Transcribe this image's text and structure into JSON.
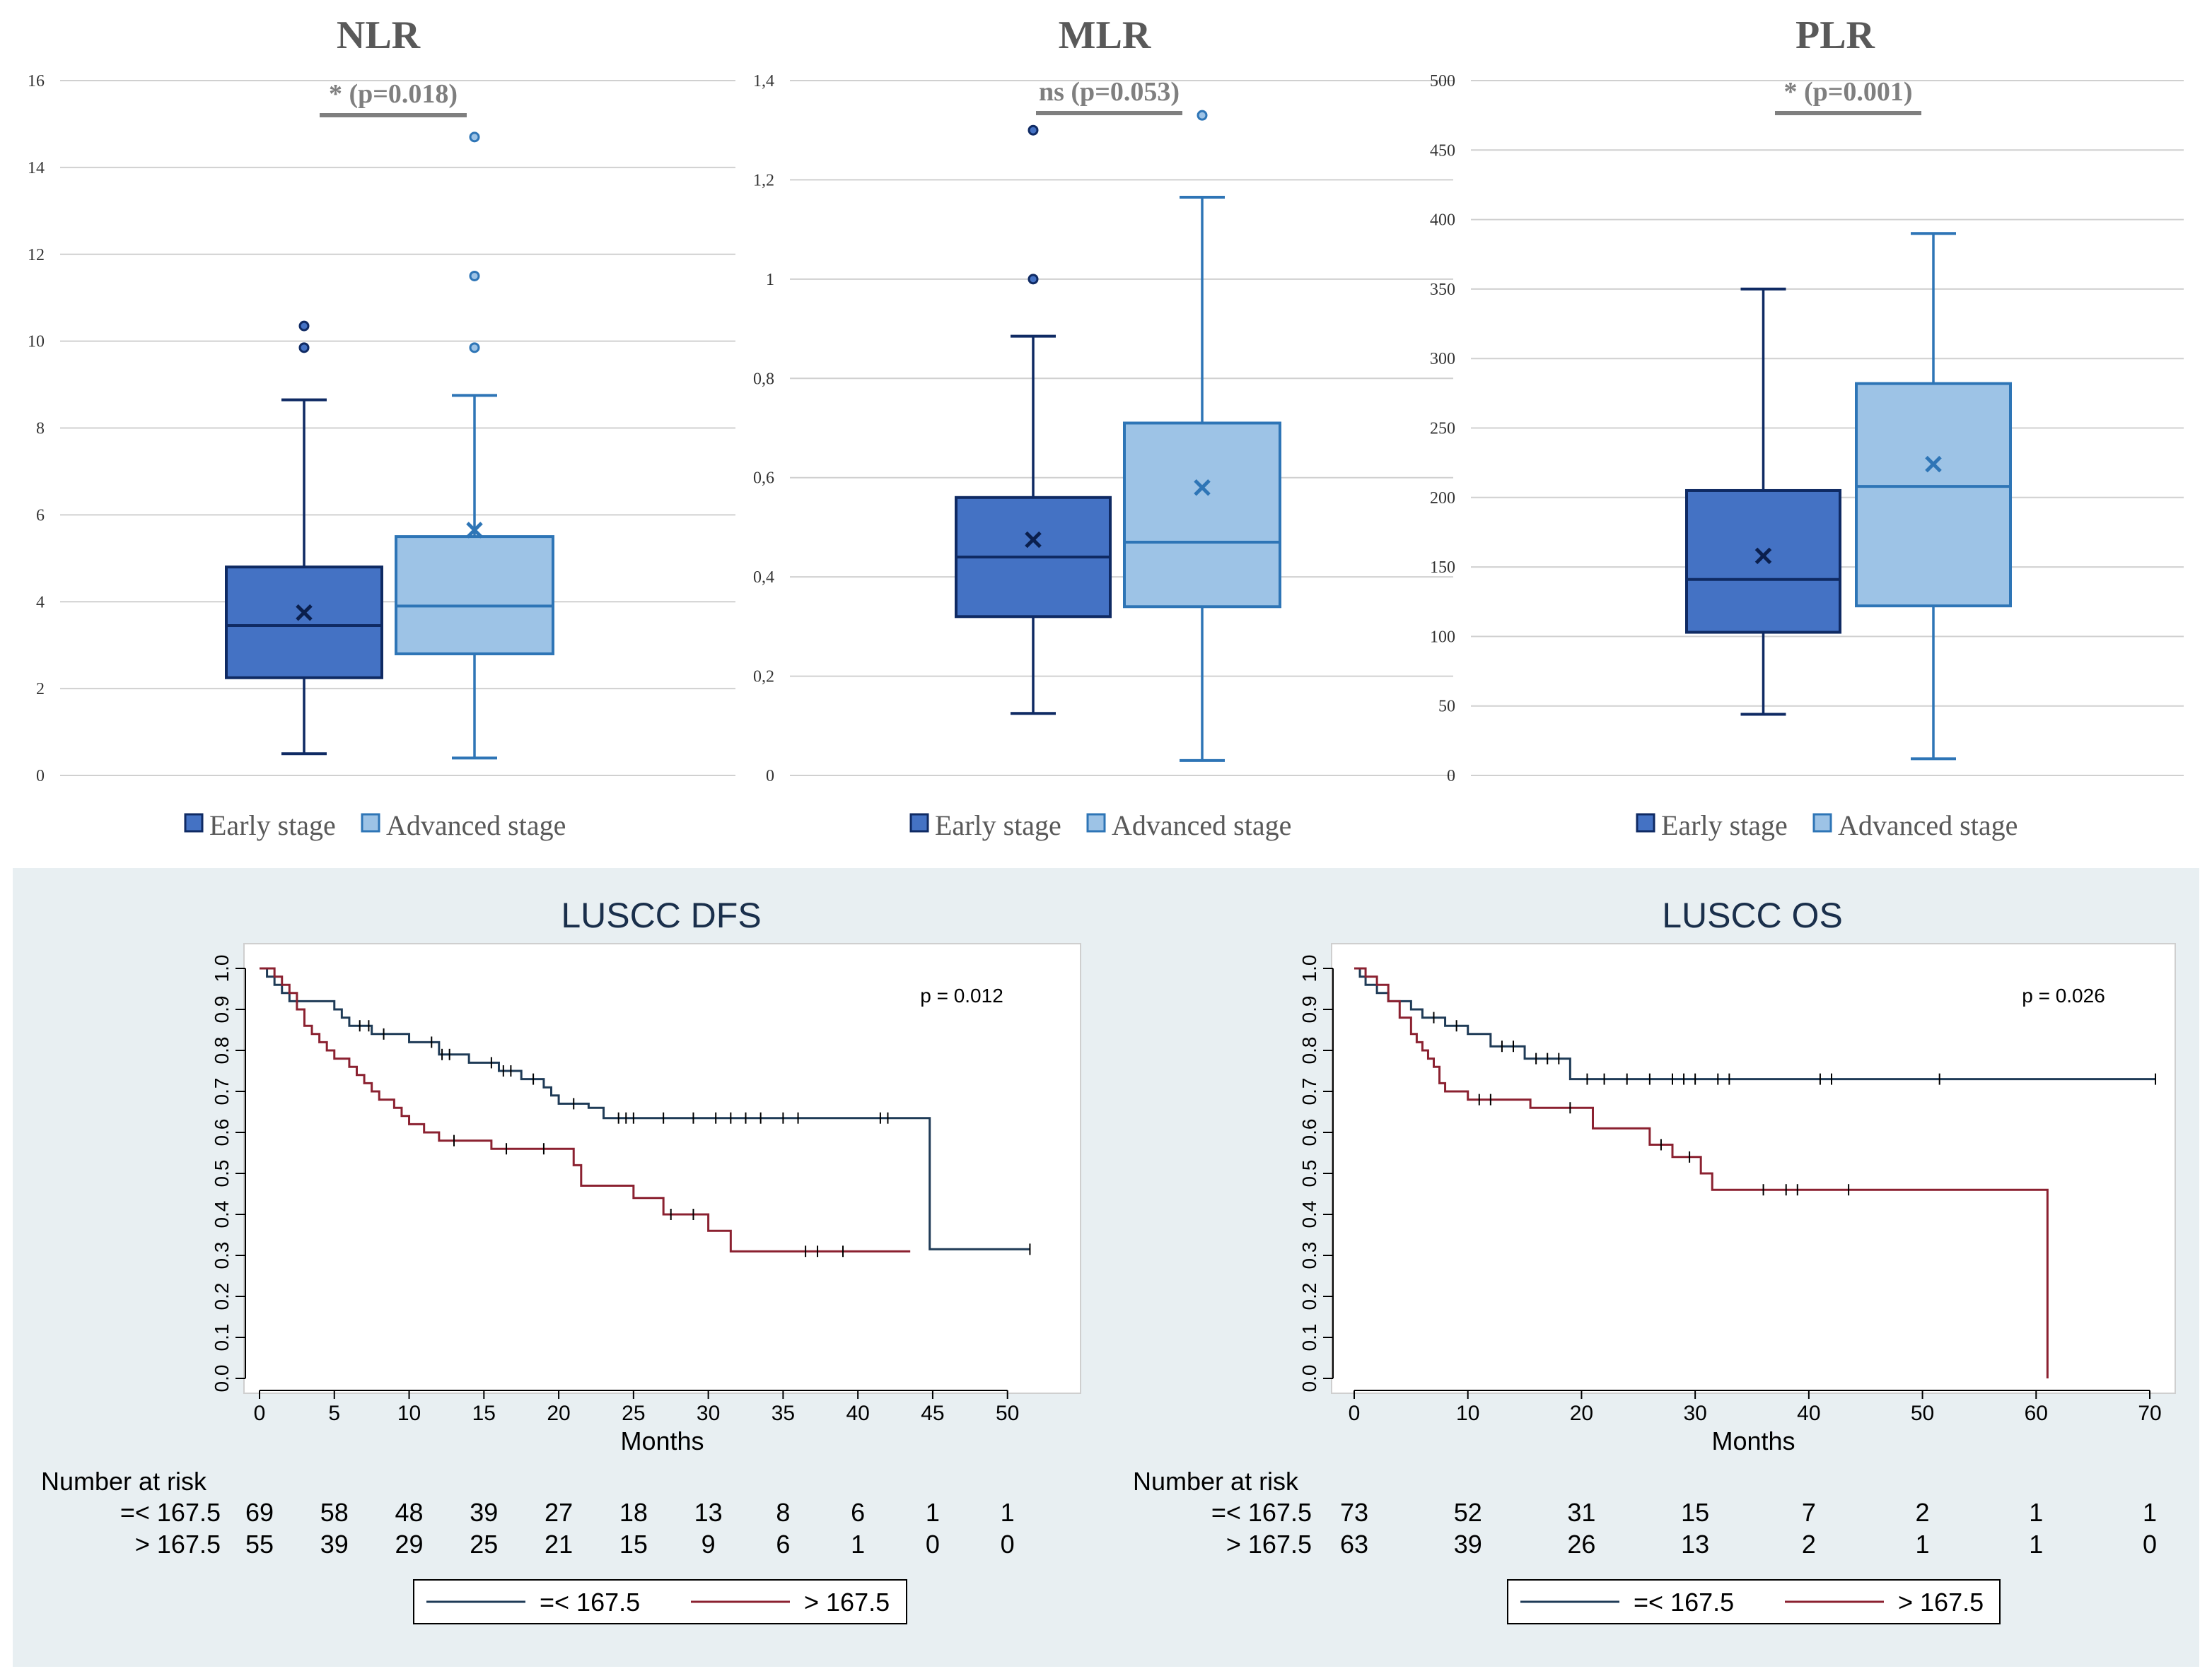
{
  "colors": {
    "early_fill": "#4472c4",
    "early_stroke": "#0f2a63",
    "adv_fill": "#9dc3e6",
    "adv_stroke": "#2e75b6",
    "panel_bg": "#e8eff2",
    "km_low": "#1f3b57",
    "km_high": "#8b2130",
    "grid": "#d0d0d0",
    "sig_text": "#7f7f7f"
  },
  "chart_data": [
    {
      "type": "box",
      "title": "NLR",
      "significance": "* (p=0.018)",
      "ylim": [
        0,
        16
      ],
      "yticks": [
        0,
        2,
        4,
        6,
        8,
        10,
        12,
        14,
        16
      ],
      "ytick_labels": [
        "0",
        "2",
        "4",
        "6",
        "8",
        "10",
        "12",
        "14",
        "16"
      ],
      "legend": [
        "Early stage",
        "Advanced stage"
      ],
      "groups": [
        {
          "name": "Early stage",
          "min": 0.5,
          "q1": 2.25,
          "median": 3.45,
          "q3": 4.8,
          "max": 8.65,
          "mean": 3.75,
          "outliers": [
            9.85,
            10.35
          ]
        },
        {
          "name": "Advanced stage",
          "min": 0.4,
          "q1": 2.8,
          "median": 3.9,
          "q3": 5.5,
          "max": 8.75,
          "mean": 5.65,
          "outliers": [
            9.85,
            11.5,
            14.7
          ]
        }
      ]
    },
    {
      "type": "box",
      "title": "MLR",
      "significance": "ns (p=0.053)",
      "ylim": [
        0,
        1.4
      ],
      "yticks": [
        0,
        0.2,
        0.4,
        0.6,
        0.8,
        1.0,
        1.2,
        1.4
      ],
      "ytick_labels": [
        "0",
        "0,2",
        "0,4",
        "0,6",
        "0,8",
        "1",
        "1,2",
        "1,4"
      ],
      "legend": [
        "Early stage",
        "Advanced stage"
      ],
      "groups": [
        {
          "name": "Early stage",
          "min": 0.125,
          "q1": 0.32,
          "median": 0.44,
          "q3": 0.56,
          "max": 0.885,
          "mean": 0.475,
          "outliers": [
            1.0,
            1.3
          ]
        },
        {
          "name": "Advanced stage",
          "min": 0.03,
          "q1": 0.34,
          "median": 0.47,
          "q3": 0.71,
          "max": 1.165,
          "mean": 0.58,
          "outliers": [
            1.33
          ]
        }
      ]
    },
    {
      "type": "box",
      "title": "PLR",
      "significance": "* (p=0.001)",
      "ylim": [
        0,
        500
      ],
      "yticks": [
        0,
        50,
        100,
        150,
        200,
        250,
        300,
        350,
        400,
        450,
        500
      ],
      "ytick_labels": [
        "0",
        "50",
        "100",
        "150",
        "200",
        "250",
        "300",
        "350",
        "400",
        "450",
        "500"
      ],
      "legend": [
        "Early stage",
        "Advanced stage"
      ],
      "groups": [
        {
          "name": "Early stage",
          "min": 44,
          "q1": 103,
          "median": 141,
          "q3": 205,
          "max": 350,
          "mean": 158,
          "outliers": []
        },
        {
          "name": "Advanced stage",
          "min": 12,
          "q1": 122,
          "median": 208,
          "q3": 282,
          "max": 390,
          "mean": 224,
          "outliers": []
        }
      ]
    },
    {
      "type": "line",
      "subtype": "kaplan-meier",
      "title": "LUSCC DFS",
      "pvalue": "p = 0.012",
      "xlabel": "Months",
      "xlim": [
        0,
        52
      ],
      "xticks": [
        0,
        5,
        10,
        15,
        20,
        25,
        30,
        35,
        40,
        45,
        50
      ],
      "ylim": [
        0,
        1
      ],
      "yticks": [
        "0.0",
        "0.1",
        "0.2",
        "0.3",
        "0.4",
        "0.5",
        "0.6",
        "0.7",
        "0.8",
        "0.9",
        "1.0"
      ],
      "series": [
        {
          "name": "=< 167.5",
          "x": [
            0,
            0.5,
            1.0,
            1.5,
            2.0,
            4.0,
            5.0,
            5.5,
            6.0,
            7.5,
            10.0,
            12.0,
            14.0,
            16.0,
            17.5,
            19.0,
            19.5,
            20.0,
            22.0,
            23.0,
            44.8,
            51.5
          ],
          "y": [
            1.0,
            0.98,
            0.96,
            0.94,
            0.92,
            0.92,
            0.9,
            0.88,
            0.86,
            0.84,
            0.82,
            0.79,
            0.77,
            0.75,
            0.73,
            0.71,
            0.69,
            0.67,
            0.66,
            0.635,
            0.315,
            0.315
          ],
          "censored": [
            6.7,
            7.3,
            8.3,
            11.5,
            12.2,
            12.7,
            15.5,
            16.3,
            16.8,
            18.3,
            21.0,
            24.0,
            24.5,
            25.0,
            27.0,
            29.0,
            30.5,
            31.5,
            32.5,
            33.5,
            35.0,
            36.0,
            41.5,
            42.0,
            51.5
          ]
        },
        {
          "name": "> 167.5",
          "x": [
            0,
            1.0,
            1.5,
            2.0,
            2.5,
            3.0,
            3.5,
            4.0,
            4.5,
            5.0,
            6.0,
            6.5,
            7.0,
            7.5,
            8.0,
            9.0,
            9.5,
            10.0,
            11.0,
            12.0,
            15.5,
            21.0,
            21.5,
            25.0,
            27.0,
            28.5,
            30.0,
            31.5,
            43.5
          ],
          "y": [
            1.0,
            0.98,
            0.96,
            0.94,
            0.9,
            0.86,
            0.84,
            0.82,
            0.8,
            0.78,
            0.76,
            0.74,
            0.72,
            0.7,
            0.68,
            0.66,
            0.64,
            0.62,
            0.6,
            0.58,
            0.56,
            0.52,
            0.47,
            0.44,
            0.4,
            0.4,
            0.36,
            0.31,
            0.31
          ],
          "censored": [
            13.0,
            16.5,
            19.0,
            27.5,
            29.0,
            36.5,
            37.3,
            39.0
          ]
        }
      ],
      "risk_table": {
        "label": "Number at risk",
        "times": [
          0,
          5,
          10,
          15,
          20,
          25,
          30,
          35,
          40,
          45,
          50
        ],
        "rows": [
          {
            "group": "=< 167.5",
            "counts": [
              "69",
              "58",
              "48",
              "39",
              "27",
              "18",
              "13",
              "8",
              "6",
              "1",
              "1"
            ]
          },
          {
            "group": "> 167.5",
            "counts": [
              "55",
              "39",
              "29",
              "25",
              "21",
              "15",
              "9",
              "6",
              "1",
              "0",
              "0"
            ]
          }
        ]
      },
      "legend": [
        "=< 167.5",
        "> 167.5"
      ]
    },
    {
      "type": "line",
      "subtype": "kaplan-meier",
      "title": "LUSCC OS",
      "pvalue": "p = 0.026",
      "xlabel": "Months",
      "xlim": [
        0,
        70
      ],
      "xticks": [
        0,
        10,
        20,
        30,
        40,
        50,
        60,
        70
      ],
      "ylim": [
        0,
        1
      ],
      "yticks": [
        "0.0",
        "0.1",
        "0.2",
        "0.3",
        "0.4",
        "0.5",
        "0.6",
        "0.7",
        "0.8",
        "0.9",
        "1.0"
      ],
      "series": [
        {
          "name": "=< 167.5",
          "x": [
            0,
            0.5,
            1.0,
            2.0,
            3.0,
            5.0,
            6.0,
            8.0,
            10.0,
            12.0,
            15.0,
            19.0,
            70.5
          ],
          "y": [
            1.0,
            0.98,
            0.96,
            0.94,
            0.92,
            0.9,
            0.88,
            0.86,
            0.84,
            0.81,
            0.78,
            0.73,
            0.73
          ],
          "censored": [
            7.0,
            9.0,
            13.0,
            14.0,
            16.0,
            17.0,
            18.0,
            20.5,
            22.0,
            24.0,
            26.0,
            28.0,
            29.0,
            30.0,
            32.0,
            33.0,
            41.0,
            42.0,
            51.5,
            70.5
          ]
        },
        {
          "name": "> 167.5",
          "x": [
            0,
            1.0,
            2.0,
            3.0,
            4.0,
            5.0,
            5.5,
            6.0,
            6.5,
            7.0,
            7.5,
            8.0,
            10.0,
            15.5,
            21.0,
            26.0,
            28.0,
            30.5,
            31.5,
            61.0
          ],
          "y": [
            1.0,
            0.98,
            0.96,
            0.92,
            0.88,
            0.84,
            0.82,
            0.8,
            0.78,
            0.76,
            0.72,
            0.7,
            0.68,
            0.66,
            0.61,
            0.57,
            0.54,
            0.5,
            0.46,
            0.0
          ],
          "censored": [
            11.0,
            12.0,
            19.0,
            27.0,
            29.5,
            36.0,
            38.0,
            39.0,
            43.5
          ]
        }
      ],
      "risk_table": {
        "label": "Number at risk",
        "times": [
          0,
          10,
          20,
          30,
          40,
          50,
          60,
          70
        ],
        "rows": [
          {
            "group": "=< 167.5",
            "counts": [
              "73",
              "52",
              "31",
              "15",
              "7",
              "2",
              "1",
              "1"
            ]
          },
          {
            "group": "> 167.5",
            "counts": [
              "63",
              "39",
              "26",
              "13",
              "2",
              "1",
              "1",
              "0"
            ]
          }
        ]
      },
      "legend": [
        "=< 167.5",
        "> 167.5"
      ]
    }
  ]
}
